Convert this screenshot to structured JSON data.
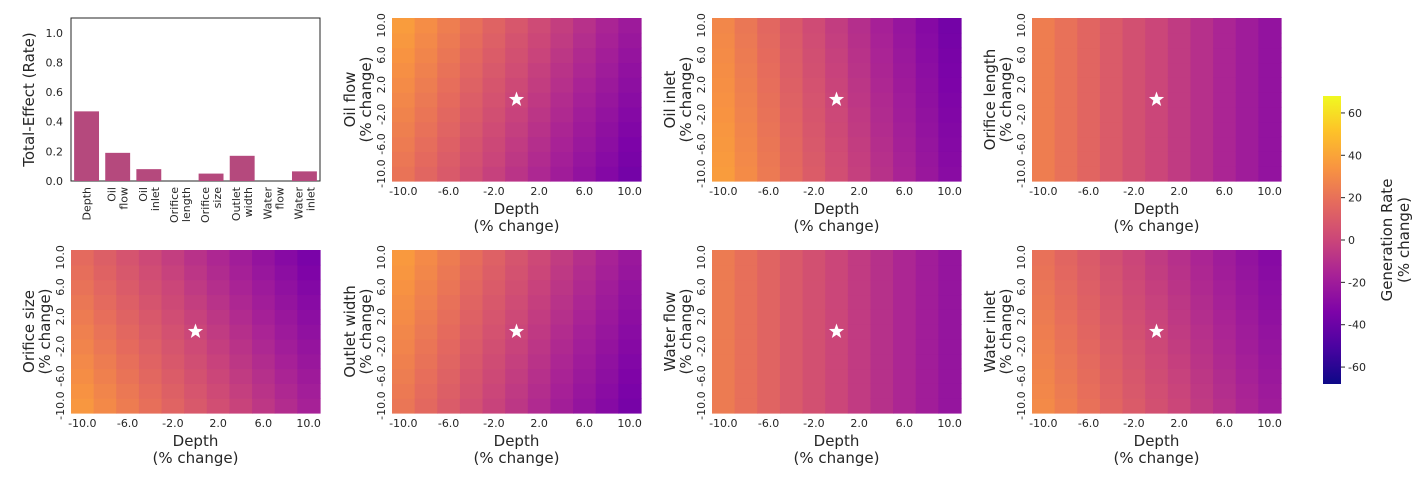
{
  "colors": {
    "bar": "#b5497d",
    "star": "#ffffff",
    "axis": "#262626"
  },
  "chart_data": [
    {
      "type": "bar",
      "ylabel": "Total-Effect (Rate)",
      "ylim": [
        0,
        1.1
      ],
      "yticks": [
        "0.0",
        "0.2",
        "0.4",
        "0.6",
        "0.8",
        "1.0"
      ],
      "categories": [
        "Depth",
        "Oil flow",
        "Oil inlet",
        "Orifice length",
        "Orifice size",
        "Outlet width",
        "Water flow",
        "Water inlet"
      ],
      "values": [
        0.47,
        0.19,
        0.08,
        0.0,
        0.05,
        0.17,
        0.0,
        0.065
      ]
    },
    {
      "type": "heatmap",
      "grid_size": 11,
      "x_param": "Depth",
      "xlabel": [
        "Depth",
        "(% change)"
      ],
      "xticks": [
        "-10.0",
        "-6.0",
        "-2.0",
        "2.0",
        "6.0",
        "10.0"
      ],
      "yticks": [
        "-10.0",
        "-6.0",
        "-2.0",
        "2.0",
        "6.0",
        "10.0"
      ],
      "star_at": [
        0,
        0
      ],
      "colorbar": {
        "label": [
          "Generation Rate",
          "(% change)"
        ],
        "range": [
          -68,
          68
        ],
        "ticks": [
          "-60",
          "-40",
          "-20",
          "0",
          "20",
          "40",
          "60"
        ]
      },
      "panels": [
        {
          "y_param": "Oil flow",
          "ylabel": [
            "Oil flow",
            "(% change)"
          ],
          "depth_sens": 2.9,
          "param_sens": 0.8
        },
        {
          "y_param": "Oil inlet",
          "ylabel": [
            "Oil inlet",
            "(% change)"
          ],
          "depth_sens": 3.3,
          "param_sens": -0.4
        },
        {
          "y_param": "Orifice length",
          "ylabel": [
            "Orifice length",
            "(% change)"
          ],
          "depth_sens": 2.5,
          "param_sens": 0.0
        },
        {
          "y_param": "Orifice size",
          "ylabel": [
            "Orifice size",
            "(% change)"
          ],
          "depth_sens": 2.6,
          "param_sens": -0.9
        },
        {
          "y_param": "Outlet width",
          "ylabel": [
            "Outlet width",
            "(% change)"
          ],
          "depth_sens": 2.9,
          "param_sens": 0.7
        },
        {
          "y_param": "Water flow",
          "ylabel": [
            "Water flow",
            "(% change)"
          ],
          "depth_sens": 2.4,
          "param_sens": 0.0
        },
        {
          "y_param": "Water inlet",
          "ylabel": [
            "Water inlet",
            "(% change)"
          ],
          "depth_sens": 2.5,
          "param_sens": -0.5
        }
      ]
    }
  ]
}
